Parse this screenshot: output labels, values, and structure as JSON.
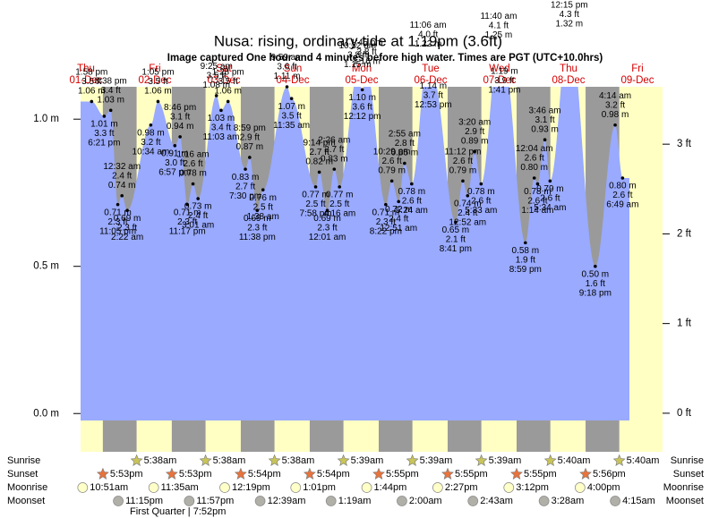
{
  "chart_data": {
    "type": "area",
    "title": "Nusa: rising, ordinary tide at 1:19pm (3.6ft)",
    "subtitle": "Image captured One hour and 4 minutes before high water. Times are PGT (UTC+10.0hrs)",
    "color": "#99aaff",
    "days": [
      {
        "name": "Thu",
        "date": "01-Dec"
      },
      {
        "name": "Fri",
        "date": "02-Dec"
      },
      {
        "name": "Sat",
        "date": "03-Dec"
      },
      {
        "name": "Sun",
        "date": "04-Dec"
      },
      {
        "name": "Mon",
        "date": "05-Dec"
      },
      {
        "name": "Tue",
        "date": "06-Dec"
      },
      {
        "name": "Wed",
        "date": "07-Dec"
      },
      {
        "name": "Thu",
        "date": "08-Dec"
      },
      {
        "name": "Fri",
        "date": "09-Dec"
      }
    ],
    "x": [
      "1:58 pm",
      "6:21 pm",
      "8:38 pm",
      "11:05 pm",
      "12:32 am",
      "2:22 am",
      "10:34 am",
      "1:05 pm",
      "6:57 pm",
      "8:46 pm",
      "11:17 pm",
      "1:16 am",
      "3:01 am",
      "9:25 am",
      "11:03 am",
      "1:28 pm",
      "7:30 pm",
      "8:59 pm",
      "11:38 pm",
      "1:38 am",
      "9:59 am",
      "11:35 am",
      "7:58 pm",
      "9:14 pm",
      "12:01 am",
      "2:26 am",
      "4:16 am",
      "10:32 am",
      "12:12 pm",
      "1:45 pm",
      "8:22 pm",
      "10:29 pm",
      "12:51 am",
      "2:55 am",
      "5:24 am",
      "11:06 am",
      "12:53 pm",
      "8:41 pm",
      "11:12 pm",
      "12:52 am",
      "3:20 am",
      "5:33 am",
      "11:40 am",
      "1:41 pm",
      "8:59 pm",
      "12:04 am",
      "1:14 am",
      "3:46 am",
      "5:34 am",
      "12:15 pm",
      "9:18 pm",
      "4:14 am",
      "6:49 am"
    ],
    "values": [
      1.06,
      1.01,
      1.03,
      0.71,
      0.74,
      0.69,
      0.98,
      1.06,
      0.91,
      0.94,
      0.71,
      0.78,
      0.73,
      1.08,
      1.03,
      1.06,
      0.83,
      0.87,
      0.69,
      0.76,
      1.11,
      1.07,
      0.77,
      0.82,
      0.69,
      0.83,
      0.77,
      1.15,
      1.1,
      1.16,
      0.71,
      0.79,
      0.72,
      0.85,
      0.78,
      1.22,
      1.14,
      0.65,
      0.79,
      0.74,
      0.89,
      0.78,
      1.25,
      1.19,
      0.58,
      0.8,
      0.78,
      0.93,
      0.79,
      1.32,
      0.5,
      0.98,
      0.8
    ],
    "value_labels": [
      "1.06 m",
      "1.01 m",
      "1.03 m",
      "0.71 m",
      "0.74 m",
      "0.69 m",
      "0.98 m",
      "1.06 m",
      "0.91 m",
      "0.94 m",
      "0.71 m",
      "0.78 m",
      "0.73 m",
      "1.08 m",
      "1.03 m",
      "1.06 m",
      "0.83 m",
      "0.87 m",
      "0.69 m",
      "0.76 m",
      "1.11 m",
      "1.07 m",
      "0.77 m",
      "0.82 m",
      "0.69 m",
      "0.83 m",
      "0.77 m",
      "1.15 m",
      "1.10 m",
      "1.16 m",
      "0.71 m",
      "0.79 m",
      "0.72 m",
      "0.85 m",
      "0.78 m",
      "1.22 m",
      "1.14 m",
      "0.65 m",
      "0.79 m",
      "0.74 m",
      "0.89 m",
      "0.78 m",
      "1.25 m",
      "1.19 m",
      "0.58 m",
      "0.80 m",
      "0.78 m",
      "0.93 m",
      "0.79 m",
      "1.32 m",
      "0.50 m",
      "0.98 m",
      "0.80 m"
    ],
    "ft_labels": [
      "3.5 ft",
      "3.3 ft",
      "3.4 ft",
      "2.3 ft",
      "2.4 ft",
      "2.3 ft",
      "3.2 ft",
      "3.5 ft",
      "3.0 ft",
      "3.1 ft",
      "2.3 ft",
      "2.6 ft",
      "2.4 ft",
      "3.5 ft",
      "3.4 ft",
      "3.5 ft",
      "2.7 ft",
      "2.9 ft",
      "2.3 ft",
      "2.5 ft",
      "3.6 ft",
      "3.5 ft",
      "2.5 ft",
      "2.7 ft",
      "2.3 ft",
      "2.7 ft",
      "2.5 ft",
      "3.8 ft",
      "3.6 ft",
      "3.8 ft",
      "2.3 ft",
      "2.6 ft",
      "2.4 ft",
      "2.8 ft",
      "2.6 ft",
      "4.0 ft",
      "3.7 ft",
      "2.1 ft",
      "2.6 ft",
      "2.4 ft",
      "2.9 ft",
      "2.6 ft",
      "4.1 ft",
      "3.9 ft",
      "1.9 ft",
      "2.6 ft",
      "2.6 ft",
      "3.1 ft",
      "2.6 ft",
      "4.3 ft",
      "1.6 ft",
      "3.2 ft",
      "2.6 ft"
    ],
    "ylim": [
      -0.13,
      1.11
    ],
    "yticks": [
      {
        "value": 0,
        "label": "0.0 m"
      },
      {
        "value": 0.5,
        "label": "0.5 m"
      },
      {
        "value": 1,
        "label": "1.0 m"
      }
    ],
    "y2lim": [
      -0.43,
      3.64
    ],
    "y2ticks": [
      {
        "value": 0,
        "label": "0 ft"
      },
      {
        "value": 1,
        "label": "1 ft"
      },
      {
        "value": 2,
        "label": "2 ft"
      },
      {
        "value": 3,
        "label": "3 ft"
      }
    ],
    "sunrise": {
      "label": "Sunrise",
      "times": [
        "5:38am",
        "5:38am",
        "5:38am",
        "5:39am",
        "5:39am",
        "5:39am",
        "5:40am",
        "5:40am"
      ]
    },
    "sunset": {
      "label": "Sunset",
      "times": [
        "5:53pm",
        "5:53pm",
        "5:54pm",
        "5:54pm",
        "5:55pm",
        "5:55pm",
        "5:55pm",
        "5:56pm"
      ]
    },
    "moonrise": {
      "label": "Moonrise",
      "times": [
        "10:51am",
        "11:35am",
        "12:19pm",
        "1:01pm",
        "1:44pm",
        "2:27pm",
        "3:12pm",
        "4:00pm"
      ]
    },
    "moonset": {
      "label": "Moonset",
      "times": [
        "11:15pm",
        "11:57pm",
        "12:39am",
        "1:19am",
        "2:00am",
        "2:43am",
        "3:28am",
        "4:15am"
      ]
    },
    "moon_phase": "First Quarter | 7:52pm"
  }
}
